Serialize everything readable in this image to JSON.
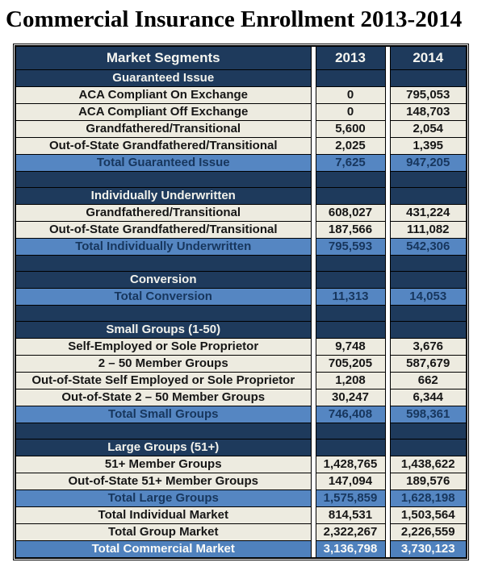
{
  "page_title": "Commercial Insurance Enrollment 2013-2014",
  "colors": {
    "navy_header": "#1E3A5C",
    "cream_row": "#EDEBE0",
    "total_row_blue": "#5586C2",
    "final_row_blue": "#4F81BD",
    "border": "#000000",
    "header_text": "#F5F5F0",
    "total_text_navy": "#17365D"
  },
  "table": {
    "columns": [
      "Market Segments",
      "2013",
      "2014"
    ],
    "rows": [
      {
        "type": "section",
        "label": "Guaranteed Issue",
        "v2013": "",
        "v2014": ""
      },
      {
        "type": "data",
        "label": "ACA Compliant On Exchange",
        "v2013": "0",
        "v2014": "795,053"
      },
      {
        "type": "data",
        "label": "ACA Compliant Off Exchange",
        "v2013": "0",
        "v2014": "148,703"
      },
      {
        "type": "data",
        "label": "Grandfathered/Transitional",
        "v2013": "5,600",
        "v2014": "2,054"
      },
      {
        "type": "data",
        "label": "Out-of-State Grandfathered/Transitional",
        "v2013": "2,025",
        "v2014": "1,395"
      },
      {
        "type": "total",
        "label": "Total Guaranteed Issue",
        "v2013": "7,625",
        "v2014": "947,205"
      },
      {
        "type": "spacer",
        "label": "",
        "v2013": "",
        "v2014": ""
      },
      {
        "type": "section",
        "label": "Individually Underwritten",
        "v2013": "",
        "v2014": ""
      },
      {
        "type": "data",
        "label": "Grandfathered/Transitional",
        "v2013": "608,027",
        "v2014": "431,224"
      },
      {
        "type": "data",
        "label": "Out-of-State Grandfathered/Transitional",
        "v2013": "187,566",
        "v2014": "111,082"
      },
      {
        "type": "total",
        "label": "Total Individually Underwritten",
        "v2013": "795,593",
        "v2014": "542,306"
      },
      {
        "type": "spacer",
        "label": "",
        "v2013": "",
        "v2014": ""
      },
      {
        "type": "section",
        "label": "Conversion",
        "v2013": "",
        "v2014": ""
      },
      {
        "type": "total",
        "label": "Total Conversion",
        "v2013": "11,313",
        "v2014": "14,053"
      },
      {
        "type": "spacer",
        "label": "",
        "v2013": "",
        "v2014": ""
      },
      {
        "type": "section",
        "label": "Small Groups (1-50)",
        "v2013": "",
        "v2014": ""
      },
      {
        "type": "data",
        "label": "Self-Employed or Sole Proprietor",
        "v2013": "9,748",
        "v2014": "3,676"
      },
      {
        "type": "data",
        "label": "2 – 50 Member Groups",
        "v2013": "705,205",
        "v2014": "587,679"
      },
      {
        "type": "data",
        "label": "Out-of-State Self Employed or Sole Proprietor",
        "v2013": "1,208",
        "v2014": "662"
      },
      {
        "type": "data",
        "label": "Out-of-State 2 – 50 Member Groups",
        "v2013": "30,247",
        "v2014": "6,344"
      },
      {
        "type": "total",
        "label": "Total Small Groups",
        "v2013": "746,408",
        "v2014": "598,361"
      },
      {
        "type": "spacer",
        "label": "",
        "v2013": "",
        "v2014": ""
      },
      {
        "type": "section",
        "label": "Large Groups (51+)",
        "v2013": "",
        "v2014": ""
      },
      {
        "type": "data",
        "label": "51+ Member Groups",
        "v2013": "1,428,765",
        "v2014": "1,438,622"
      },
      {
        "type": "data",
        "label": "Out-of-State 51+ Member Groups",
        "v2013": "147,094",
        "v2014": "189,576"
      },
      {
        "type": "total",
        "label": "Total Large Groups",
        "v2013": "1,575,859",
        "v2014": "1,628,198"
      },
      {
        "type": "data",
        "label": "Total Individual Market",
        "v2013": "814,531",
        "v2014": "1,503,564"
      },
      {
        "type": "data",
        "label": "Total Group Market",
        "v2013": "2,322,267",
        "v2014": "2,226,559"
      },
      {
        "type": "final",
        "label": "Total Commercial Market",
        "v2013": "3,136,798",
        "v2014": "3,730,123"
      }
    ]
  }
}
